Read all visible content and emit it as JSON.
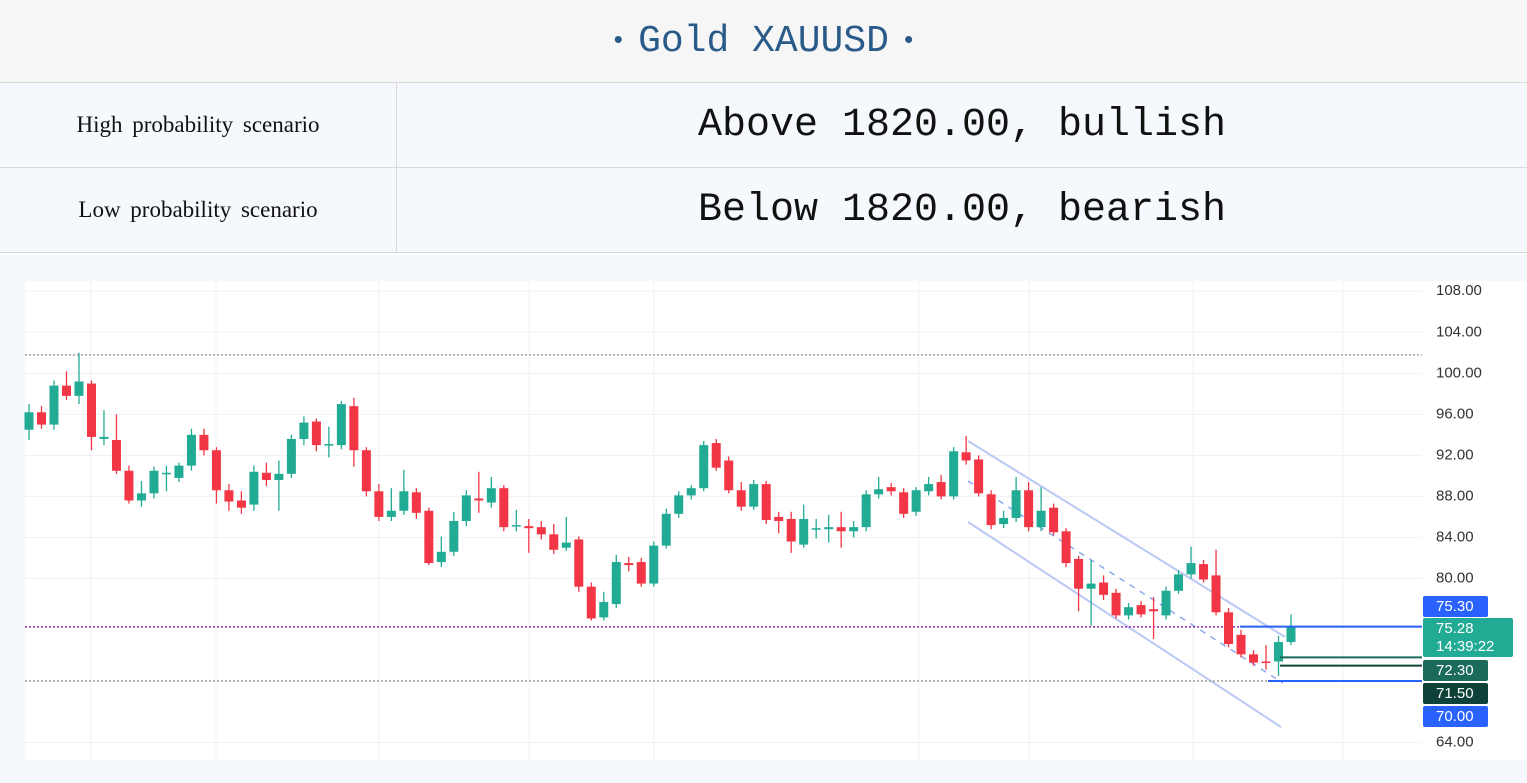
{
  "header": {
    "title": "Gold XAUUSD"
  },
  "table": {
    "rows": [
      [
        "High probability scenario",
        "Above 1820.00, bullish"
      ],
      [
        "Low probability scenario",
        "Below 1820.00, bearish"
      ]
    ]
  },
  "chart_data": {
    "type": "candlestick",
    "ylim": [
      62.3,
      109
    ],
    "yticks": [
      {
        "value": 108,
        "label": "108.00"
      },
      {
        "value": 104,
        "label": "104.00"
      },
      {
        "value": 100,
        "label": "100.00"
      },
      {
        "value": 96,
        "label": "96.00"
      },
      {
        "value": 92,
        "label": "92.00"
      },
      {
        "value": 88,
        "label": "88.00"
      },
      {
        "value": 84,
        "label": "84.00"
      },
      {
        "value": 80,
        "label": "80.00"
      },
      {
        "value": 64,
        "label": "64.00"
      }
    ],
    "grid": true,
    "up_color": "#22ab94",
    "down_color": "#f23645",
    "open": [
      94.5,
      96.2,
      95,
      98.8,
      97.8,
      99,
      93.6,
      93.5,
      90.5,
      87.6,
      88.3,
      90.2,
      89.8,
      91,
      94,
      92.5,
      88.6,
      87.6,
      87.2,
      90.3,
      89.6,
      90.2,
      93.6,
      95.3,
      93,
      93,
      96.8,
      92.5,
      88.5,
      86,
      86.6,
      88.4,
      86.6,
      81.6,
      82.6,
      85.6,
      87.8,
      87.4,
      88.8,
      85.1,
      85.1,
      85,
      84.3,
      83,
      83.8,
      79.2,
      76.2,
      77.5,
      81.5,
      81.6,
      79.5,
      83.2,
      86.3,
      88.1,
      88.8,
      93.2,
      91.5,
      88.6,
      87,
      89.2,
      86,
      85.8,
      83.3,
      84.8,
      84.8,
      85,
      84.6,
      85,
      88.2,
      88.9,
      88.4,
      86.5,
      88.5,
      89.4,
      88,
      92.3,
      91.6,
      88.2,
      85.3,
      85.9,
      88.6,
      85,
      86.9,
      84.6,
      81.9,
      79,
      79.6,
      78.6,
      76.4,
      77.4,
      77,
      76.4,
      78.8,
      80.4,
      81.4,
      80.3,
      76.7,
      74.5,
      72.6,
      71.9,
      71.9,
      73.8
    ],
    "high": [
      97,
      96.8,
      99.3,
      100.2,
      102,
      99.3,
      96.4,
      96,
      91,
      89.5,
      90.9,
      91,
      91.3,
      94.6,
      94.6,
      92.8,
      89.2,
      88.5,
      91,
      91.3,
      91.5,
      94,
      95.8,
      95.6,
      94.8,
      97.3,
      97.6,
      92.8,
      89.2,
      88.8,
      90.6,
      88.8,
      86.9,
      84.1,
      86.5,
      88.6,
      90.4,
      89.9,
      89.1,
      86.7,
      85.8,
      85.6,
      85.3,
      86,
      84.1,
      79.6,
      78.7,
      82.3,
      82.1,
      82,
      83.6,
      86.8,
      88.5,
      89.1,
      93.4,
      93.6,
      91.9,
      89.4,
      89.6,
      89.5,
      86.5,
      86.5,
      87.2,
      85.8,
      86.2,
      86.5,
      85.6,
      88.6,
      89.9,
      89.3,
      88.8,
      88.9,
      89.9,
      90.1,
      92.8,
      93.9,
      92,
      88.6,
      86.6,
      89.9,
      89.4,
      88.9,
      87.3,
      84.9,
      82.2,
      81.8,
      80.3,
      79,
      77.6,
      77.8,
      78.2,
      79.2,
      80.8,
      83.1,
      81.8,
      82.8,
      77.1,
      75,
      73,
      73.5,
      74.4,
      76.5
    ],
    "low": [
      93.5,
      94.6,
      94.5,
      97.4,
      97,
      92.5,
      93,
      90.2,
      87.3,
      87,
      87.8,
      88.5,
      89.4,
      90.5,
      92,
      87.3,
      86.6,
      86.3,
      86.6,
      89,
      86.6,
      89.8,
      93,
      92.4,
      91.8,
      92.6,
      90.9,
      88,
      85.6,
      85.6,
      86.2,
      85.8,
      81.3,
      81.1,
      82.2,
      85.1,
      86.4,
      86.9,
      84.6,
      84.6,
      82.5,
      83.8,
      82.4,
      82.7,
      78.7,
      75.9,
      75.9,
      77.1,
      80.7,
      79.2,
      79.2,
      82.9,
      85.9,
      87.7,
      88.5,
      90.5,
      88.3,
      86.6,
      86.7,
      85.3,
      84.4,
      82.5,
      83,
      83.9,
      83.5,
      83,
      84,
      84.6,
      87.8,
      88.1,
      85.9,
      86.1,
      88.1,
      87.7,
      87.7,
      91.1,
      88,
      84.8,
      84.9,
      85.5,
      84.6,
      84.6,
      84.2,
      81.1,
      76.8,
      75.4,
      77.9,
      76.1,
      76,
      76.2,
      74.1,
      76,
      78.5,
      80,
      79.6,
      76.4,
      73.3,
      72.3,
      71.5,
      71.1,
      70.5,
      73.5
    ],
    "close": [
      96.2,
      95,
      98.8,
      97.8,
      99.2,
      93.8,
      93.8,
      90.5,
      87.6,
      88.3,
      90.5,
      90.3,
      91,
      94,
      92.5,
      88.6,
      87.5,
      86.9,
      90.4,
      89.6,
      90.2,
      93.6,
      95.2,
      93,
      93.1,
      97,
      92.5,
      88.5,
      86,
      86.6,
      88.5,
      86.4,
      81.5,
      82.6,
      85.6,
      88.1,
      87.6,
      88.8,
      85,
      85.2,
      84.9,
      84.3,
      82.8,
      83.5,
      79.2,
      76.1,
      77.7,
      81.6,
      81.3,
      79.5,
      83.2,
      86.3,
      88.1,
      88.8,
      93,
      90.8,
      88.6,
      87,
      89.2,
      85.7,
      85.6,
      83.6,
      85.8,
      84.9,
      85,
      84.6,
      85,
      88.2,
      88.7,
      88.5,
      86.3,
      88.6,
      89.2,
      88,
      92.4,
      91.5,
      88.3,
      85.2,
      85.9,
      88.6,
      85,
      86.6,
      84.5,
      81.5,
      79,
      79.5,
      78.4,
      76.4,
      77.2,
      76.5,
      76.8,
      78.8,
      80.4,
      81.5,
      79.9,
      76.7,
      73.6,
      72.6,
      71.8,
      71.8,
      73.8,
      75.3
    ],
    "dotted_lines": [
      {
        "value": 101.8,
        "color": "#9e9e9e"
      },
      {
        "value": 75.28,
        "color": "#9c27b0"
      },
      {
        "value": 70,
        "color": "#9e9e9e"
      }
    ],
    "levels": [
      {
        "value": 75.3,
        "label": "75.30",
        "color": "#2962ff"
      },
      {
        "value": 75.28,
        "label": "75.28",
        "color": "#22ab94",
        "countdown": "14:39:22"
      },
      {
        "value": 72.3,
        "label": "72.30",
        "color": "#1b6b5a"
      },
      {
        "value": 71.5,
        "label": "71.50",
        "color": "#0e4238"
      },
      {
        "value": 70,
        "label": "70.00",
        "color": "#2962ff"
      }
    ]
  }
}
